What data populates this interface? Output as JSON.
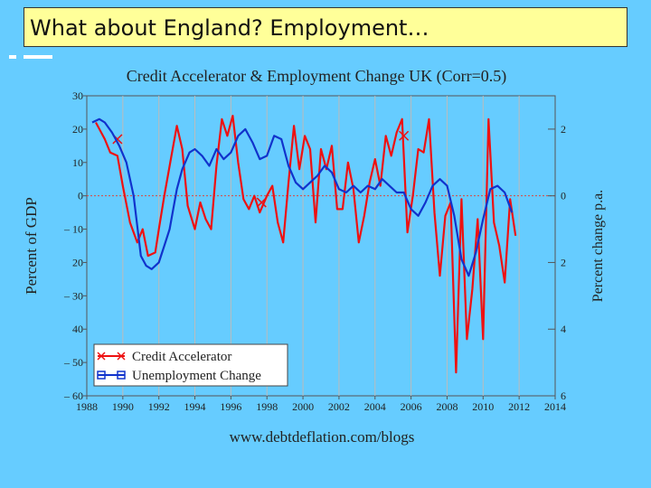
{
  "slide": {
    "title": "What about England? Employment…"
  },
  "chart_data": {
    "type": "line",
    "title": "Credit Accelerator & Employment Change UK (Corr=0.5)",
    "ylabel_left": "Percent of GDP",
    "ylabel_right": "Percent change p.a.",
    "source": "www.debtdeflation.com/blogs",
    "xlim": [
      1988,
      2014
    ],
    "ylim_left": [
      -60,
      30
    ],
    "ylim_right": [
      -6,
      3
    ],
    "x_ticks": [
      "1988",
      "1990",
      "1992",
      "1994",
      "1996",
      "1998",
      "2000",
      "2002",
      "2004",
      "2006",
      "2008",
      "2010",
      "2012",
      "2014"
    ],
    "y_left_ticks": [
      {
        "v": 30,
        "label": "30"
      },
      {
        "v": 20,
        "label": "20"
      },
      {
        "v": 10,
        "label": "10"
      },
      {
        "v": 0,
        "label": "0"
      },
      {
        "v": -10,
        "label": "– 10"
      },
      {
        "v": -20,
        "label": "20"
      },
      {
        "v": -30,
        "label": "– 30"
      },
      {
        "v": -40,
        "label": "40"
      },
      {
        "v": -50,
        "label": "– 50"
      },
      {
        "v": -60,
        "label": "– 60"
      }
    ],
    "y_right_ticks": [
      {
        "v": 2,
        "label": "2"
      },
      {
        "v": 0,
        "label": "0"
      },
      {
        "v": -2,
        "label": "2"
      },
      {
        "v": -4,
        "label": "4"
      },
      {
        "v": -6,
        "label": "6"
      }
    ],
    "series": [
      {
        "name": "Credit Accelerator",
        "color": "#ee1111",
        "axis": "left",
        "x": [
          1988.5,
          1989,
          1989.3,
          1989.7,
          1990,
          1990.4,
          1990.8,
          1991.1,
          1991.4,
          1991.8,
          1992,
          1992.3,
          1992.7,
          1993,
          1993.3,
          1993.6,
          1994,
          1994.3,
          1994.6,
          1994.9,
          1995.2,
          1995.5,
          1995.8,
          1996.1,
          1996.4,
          1996.7,
          1997,
          1997.3,
          1997.6,
          1998,
          1998.3,
          1998.6,
          1998.9,
          1999.2,
          1999.5,
          1999.8,
          2000.1,
          2000.4,
          2000.7,
          2001,
          2001.3,
          2001.6,
          2001.9,
          2002.2,
          2002.5,
          2002.8,
          2003.1,
          2003.4,
          2003.7,
          2004,
          2004.3,
          2004.6,
          2004.9,
          2005.2,
          2005.5,
          2005.8,
          2006.1,
          2006.4,
          2006.7,
          2007,
          2007.3,
          2007.6,
          2007.9,
          2008.2,
          2008.5,
          2008.8,
          2009.1,
          2009.4,
          2009.7,
          2010,
          2010.3,
          2010.6,
          2010.9,
          2011.2,
          2011.5,
          2011.8
        ],
        "y": [
          22,
          17,
          13,
          12,
          3,
          -8,
          -14,
          -10,
          -18,
          -17,
          -10,
          0,
          12,
          21,
          14,
          -3,
          -10,
          -2,
          -7,
          -10,
          9,
          23,
          18,
          24,
          10,
          -1,
          -4,
          0,
          -5,
          0,
          3,
          -8,
          -14,
          4,
          21,
          8,
          18,
          14,
          -8,
          14,
          8,
          15,
          -4,
          -4,
          10,
          2,
          -14,
          -6,
          4,
          11,
          3,
          18,
          12,
          19,
          23,
          -11,
          0,
          14,
          13,
          23,
          -5,
          -24,
          -6,
          -2,
          -53,
          -1,
          -43,
          -28,
          -7,
          -43,
          23,
          -8,
          -15,
          -26,
          -1,
          -12
        ],
        "markers": [
          {
            "x": 1989.7,
            "y": 17
          },
          {
            "x": 1997.7,
            "y": -2
          },
          {
            "x": 2005.6,
            "y": 18
          }
        ]
      },
      {
        "name": "Unemployment Change",
        "color": "#1133cc",
        "axis": "right",
        "x": [
          1988.3,
          1988.7,
          1989,
          1989.4,
          1989.8,
          1990.2,
          1990.6,
          1991,
          1991.3,
          1991.6,
          1992,
          1992.3,
          1992.6,
          1993,
          1993.3,
          1993.7,
          1994,
          1994.4,
          1994.8,
          1995.2,
          1995.6,
          1996,
          1996.4,
          1996.8,
          1997.2,
          1997.6,
          1998,
          1998.4,
          1998.8,
          1999.2,
          1999.6,
          2000,
          2000.4,
          2000.8,
          2001.2,
          2001.6,
          2002,
          2002.4,
          2002.8,
          2003.2,
          2003.6,
          2004,
          2004.4,
          2004.8,
          2005.2,
          2005.6,
          2006,
          2006.4,
          2006.8,
          2007.2,
          2007.6,
          2008,
          2008.4,
          2008.8,
          2009.2,
          2009.6,
          2010,
          2010.4,
          2010.8,
          2011.2,
          2011.6
        ],
        "y": [
          2.2,
          2.3,
          2.2,
          1.9,
          1.5,
          1,
          0,
          -1.8,
          -2.1,
          -2.2,
          -2,
          -1.5,
          -1,
          0.2,
          0.8,
          1.3,
          1.4,
          1.2,
          0.9,
          1.4,
          1.1,
          1.3,
          1.8,
          2,
          1.6,
          1.1,
          1.2,
          1.8,
          1.7,
          0.9,
          0.4,
          0.2,
          0.4,
          0.6,
          0.9,
          0.7,
          0.2,
          0.1,
          0.3,
          0.1,
          0.3,
          0.2,
          0.5,
          0.3,
          0.1,
          0.1,
          -0.4,
          -0.6,
          -0.2,
          0.3,
          0.5,
          0.3,
          -0.6,
          -1.9,
          -2.4,
          -1.7,
          -0.7,
          0.2,
          0.3,
          0.1,
          -0.5
        ]
      }
    ],
    "legend_placement": "bottom-left",
    "grid": "vertical"
  }
}
